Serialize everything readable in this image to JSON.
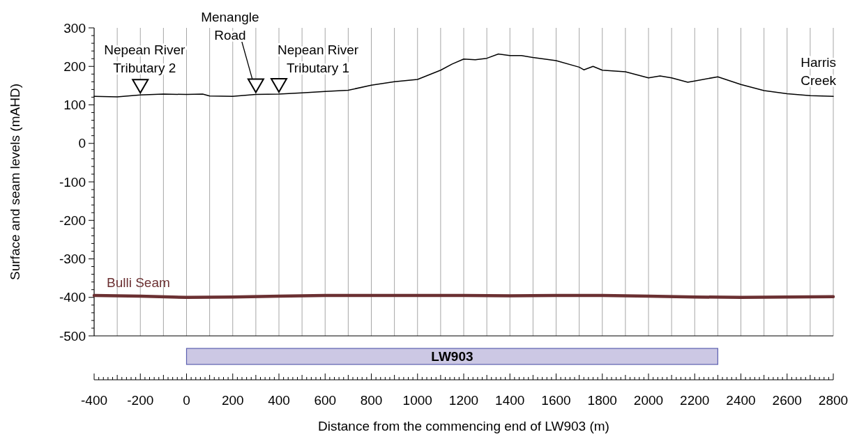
{
  "chart_data": [
    {
      "type": "line",
      "ylabel": "Surface and seam levels (mAHD)",
      "xlim": [
        -400,
        2800
      ],
      "ylim": [
        -500,
        300
      ],
      "xticks": [
        -400,
        {
          "value": -300,
          "label": null
        },
        -200,
        {
          "value": -100,
          "label": null
        },
        0,
        {
          "value": 100,
          "label": null
        },
        200,
        {
          "value": 300,
          "label": null
        },
        400,
        {
          "value": 500,
          "label": null
        },
        600,
        {
          "value": 700,
          "label": null
        },
        800,
        {
          "value": 900,
          "label": null
        },
        1000,
        {
          "value": 1100,
          "label": null
        },
        1200,
        {
          "value": 1300,
          "label": null
        },
        1400,
        {
          "value": 1500,
          "label": null
        },
        1600,
        {
          "value": 1700,
          "label": null
        },
        1800,
        {
          "value": 1900,
          "label": null
        },
        2000,
        {
          "value": 2100,
          "label": null
        },
        2200,
        {
          "value": 2300,
          "label": null
        },
        2400,
        {
          "value": 2500,
          "label": null
        },
        2600,
        {
          "value": 2700,
          "label": null
        },
        2800
      ],
      "yticks": [
        -500,
        -400,
        -300,
        -200,
        -100,
        0,
        100,
        200,
        300
      ],
      "grid": "x",
      "marker": "none",
      "tick_labels": "y",
      "series": [
        {
          "color": "#000000",
          "x": [
            -400,
            -300,
            -200,
            -100,
            0,
            70,
            100,
            200,
            300,
            400,
            500,
            600,
            700,
            800,
            900,
            1000,
            1100,
            1150,
            1200,
            1250,
            1300,
            1350,
            1400,
            1450,
            1500,
            1600,
            1700,
            1720,
            1760,
            1800,
            1900,
            2000,
            2050,
            2100,
            2170,
            2200,
            2300,
            2400,
            2500,
            2600,
            2700,
            2800
          ],
          "values": [
            122,
            121,
            126,
            128,
            127,
            128,
            123,
            122,
            127,
            128,
            131,
            135,
            138,
            151,
            160,
            166,
            190,
            206,
            219,
            217,
            221,
            232,
            228,
            228,
            223,
            215,
            198,
            191,
            200,
            190,
            186,
            170,
            175,
            170,
            159,
            162,
            173,
            153,
            137,
            129,
            124,
            122
          ]
        },
        {
          "name": "Bulli Seam",
          "color": "#6b3032",
          "x": [
            -400,
            -200,
            0,
            200,
            400,
            600,
            800,
            1000,
            1200,
            1400,
            1600,
            1700,
            1800,
            2000,
            2200,
            2400,
            2600,
            2800
          ],
          "values": [
            -395,
            -397,
            -400,
            -399,
            -397,
            -395,
            -395,
            -395,
            -395,
            -396,
            -395,
            -395,
            -395,
            -397,
            -399,
            -400,
            -399,
            -398
          ]
        }
      ],
      "annotations": [
        {
          "text": "Nepean River\nTributary 2",
          "x": -200,
          "y": 126
        },
        {
          "text": "Menangle\nRoad",
          "x": 300,
          "y": 127
        },
        {
          "text": "Nepean River\nTributary 1",
          "x": 400,
          "y": 128
        },
        {
          "text": "Harris\nCreek",
          "x": 2800,
          "y": 122
        }
      ]
    },
    {
      "type": "bar",
      "orientation": "horizontal",
      "xlabel": "Distance from the commencing end of LW903 (m)",
      "categories": [
        null
      ],
      "base": [
        0
      ],
      "values": [
        2300
      ],
      "colors": [
        "#ccc8e4"
      ],
      "xlim": [
        -400,
        2800
      ],
      "xticks": [
        -400,
        -200,
        0,
        200,
        400,
        600,
        800,
        1000,
        1200,
        1400,
        1600,
        1800,
        2000,
        2200,
        2400,
        2600,
        2800
      ],
      "tick_labels": "x",
      "annotations": [
        "LW903"
      ]
    }
  ]
}
